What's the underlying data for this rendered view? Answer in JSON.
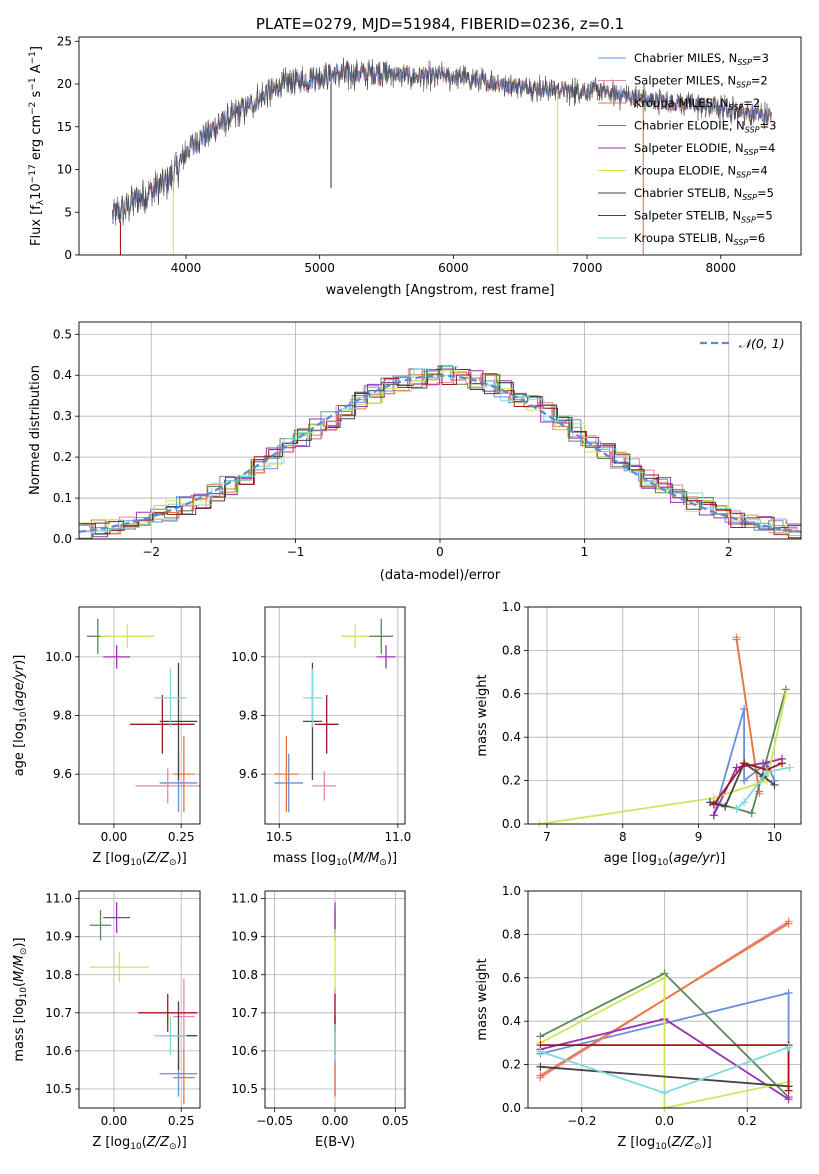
{
  "figure": {
    "title": "PLATE=0279, MJD=51984, FIBERID=0236, z=0.1",
    "colors": {
      "Chabrier MILES": "#6a8fd8",
      "Salpeter MILES": "#e78aa5",
      "Kroupa MILES": "#e8793a",
      "Chabrier ELODIE": "#5c8a5c",
      "Salpeter ELODIE": "#9b30b0",
      "Kroupa ELODIE": "#cfe65a",
      "Chabrier STELIB": "#444444",
      "Salpeter STELIB": "#a01818",
      "Kroupa STELIB": "#7fd9de"
    }
  },
  "chart_data": [
    {
      "id": "spectrum",
      "type": "line",
      "title": "PLATE=0279, MJD=51984, FIBERID=0236, z=0.1",
      "xlabel": "wavelength [Angstrom, rest frame]",
      "ylabel": "Flux [f_λ10^-17 erg cm^-2 s^-1 A^-1]",
      "xlim": [
        3200,
        8600
      ],
      "ylim": [
        0,
        25.5
      ],
      "xticks": [
        4000,
        5000,
        6000,
        7000,
        8000
      ],
      "yticks": [
        0,
        5,
        10,
        15,
        20,
        25
      ],
      "grid": false,
      "legend_placement": "top-right",
      "continuum": {
        "x": [
          3450,
          3600,
          3750,
          3900,
          4000,
          4100,
          4300,
          4500,
          4700,
          4900,
          5100,
          5300,
          5500,
          5700,
          5900,
          6100,
          6300,
          6500,
          6700,
          6900,
          7100,
          7300,
          7500,
          7700,
          7900,
          8100,
          8300,
          8380
        ],
        "y": [
          4.5,
          6.2,
          7.6,
          9.2,
          12.0,
          13.6,
          15.8,
          17.8,
          19.8,
          20.6,
          21.2,
          21.2,
          21.3,
          20.9,
          21.0,
          20.6,
          20.1,
          19.8,
          19.4,
          19.2,
          19.1,
          18.6,
          18.1,
          17.8,
          17.4,
          17.0,
          16.4,
          16.0
        ]
      },
      "series": [
        {
          "name": "Chabrier MILES",
          "nssp": "3"
        },
        {
          "name": "Salpeter MILES",
          "nssp": "2"
        },
        {
          "name": "Kroupa MILES",
          "nssp": "2"
        },
        {
          "name": "Chabrier ELODIE",
          "nssp": "3"
        },
        {
          "name": "Salpeter ELODIE",
          "nssp": "4"
        },
        {
          "name": "Kroupa ELODIE",
          "nssp": "4"
        },
        {
          "name": "Chabrier STELIB",
          "nssp": "5"
        },
        {
          "name": "Salpeter STELIB",
          "nssp": "5"
        },
        {
          "name": "Kroupa STELIB",
          "nssp": "6"
        }
      ],
      "drops": [
        {
          "x": 3510,
          "y_from": 4.0,
          "y_to": 0,
          "series": "Salpeter STELIB"
        },
        {
          "x": 3905,
          "y_from": 9.5,
          "y_to": 0,
          "series": "Kroupa ELODIE"
        },
        {
          "x": 5085,
          "y_from": 20.0,
          "y_to": 7.8,
          "series": "Chabrier STELIB"
        },
        {
          "x": 6780,
          "y_from": 19.4,
          "y_to": 0,
          "series": "Kroupa ELODIE"
        },
        {
          "x": 7420,
          "y_from": 18.4,
          "y_to": 0,
          "series": "Kroupa MILES"
        }
      ]
    },
    {
      "id": "residuals",
      "type": "histogram",
      "xlabel": "(data-model)/error",
      "ylabel": "Normed distribution",
      "xlim": [
        -2.5,
        2.5
      ],
      "ylim": [
        0,
        0.53
      ],
      "xticks": [
        -2,
        -1,
        0,
        1,
        2
      ],
      "yticks": [
        0.0,
        0.1,
        0.2,
        0.3,
        0.4,
        0.5
      ],
      "grid": true,
      "legend_placement": "top-right",
      "gaussian_legend": "𝒩(0, 1)",
      "bin_width": 0.1,
      "bins_start": -2.5,
      "series_heights": [
        [
          0.02,
          0.02,
          0.03,
          0.03,
          0.04,
          0.04,
          0.05,
          0.06,
          0.07,
          0.08,
          0.09,
          0.11,
          0.12,
          0.14,
          0.16,
          0.18,
          0.19,
          0.21,
          0.23,
          0.25,
          0.26,
          0.28,
          0.3,
          0.32,
          0.34,
          0.36,
          0.37,
          0.39,
          0.4,
          0.42,
          0.43,
          0.41,
          0.4,
          0.38,
          0.37,
          0.35,
          0.33,
          0.31,
          0.29,
          0.27,
          0.25,
          0.23,
          0.21,
          0.19,
          0.17,
          0.15,
          0.13,
          0.11,
          0.1,
          0.08
        ]
      ]
    },
    {
      "id": "age_vs_Z",
      "type": "errorbar",
      "xlabel": "Z [log10(Z/Z⊙)]",
      "ylabel": "age [log10(age/yr)]",
      "xlim": [
        -0.13,
        0.32
      ],
      "ylim": [
        9.43,
        10.17
      ],
      "xticks": [
        "0.00",
        "0.25"
      ],
      "xtick_values": [
        0.0,
        0.25
      ],
      "yticks": [
        "9.6",
        "9.8",
        "10.0"
      ],
      "ytick_values": [
        9.6,
        9.8,
        10.0
      ],
      "grid": true,
      "points": [
        {
          "series": "Chabrier MILES",
          "x": 0.24,
          "y": 9.57,
          "xerr": 0.07,
          "yerr": 0.1
        },
        {
          "series": "Salpeter MILES",
          "x": 0.2,
          "y": 9.56,
          "xerr": 0.12,
          "yerr": 0.06
        },
        {
          "series": "Kroupa MILES",
          "x": 0.26,
          "y": 9.6,
          "xerr": 0.04,
          "yerr": 0.13
        },
        {
          "series": "Chabrier ELODIE",
          "x": -0.06,
          "y": 10.07,
          "xerr": 0.04,
          "yerr": 0.06
        },
        {
          "series": "Salpeter ELODIE",
          "x": 0.01,
          "y": 10.0,
          "xerr": 0.05,
          "yerr": 0.04
        },
        {
          "series": "Kroupa ELODIE",
          "x": 0.05,
          "y": 10.07,
          "xerr": 0.1,
          "yerr": 0.04
        },
        {
          "series": "Chabrier STELIB",
          "x": 0.24,
          "y": 9.78,
          "xerr": 0.07,
          "yerr": 0.2
        },
        {
          "series": "Salpeter STELIB",
          "x": 0.18,
          "y": 9.77,
          "xerr": 0.12,
          "yerr": 0.1
        },
        {
          "series": "Kroupa STELIB",
          "x": 0.21,
          "y": 9.86,
          "xerr": 0.06,
          "yerr": 0.1
        }
      ]
    },
    {
      "id": "age_vs_mass",
      "type": "errorbar",
      "xlabel": "mass [log10(M/M⊙)]",
      "ylabel": "",
      "xlim": [
        10.44,
        11.03
      ],
      "ylim": [
        9.43,
        10.17
      ],
      "xticks": [
        "10.5",
        "11.0"
      ],
      "xtick_values": [
        10.5,
        11.0
      ],
      "yticks": [
        "9.6",
        "9.8",
        "10.0"
      ],
      "ytick_values": [
        9.6,
        9.8,
        10.0
      ],
      "grid": true,
      "points": [
        {
          "series": "Chabrier MILES",
          "x": 10.54,
          "y": 9.57,
          "xerr": 0.06,
          "yerr": 0.1
        },
        {
          "series": "Salpeter MILES",
          "x": 10.69,
          "y": 9.56,
          "xerr": 0.05,
          "yerr": 0.05
        },
        {
          "series": "Kroupa MILES",
          "x": 10.53,
          "y": 9.6,
          "xerr": 0.05,
          "yerr": 0.13
        },
        {
          "series": "Chabrier ELODIE",
          "x": 10.93,
          "y": 10.07,
          "xerr": 0.05,
          "yerr": 0.06
        },
        {
          "series": "Salpeter ELODIE",
          "x": 10.95,
          "y": 10.0,
          "xerr": 0.04,
          "yerr": 0.04
        },
        {
          "series": "Kroupa ELODIE",
          "x": 10.82,
          "y": 10.07,
          "xerr": 0.06,
          "yerr": 0.04
        },
        {
          "series": "Chabrier STELIB",
          "x": 10.64,
          "y": 9.78,
          "xerr": 0.04,
          "yerr": 0.2
        },
        {
          "series": "Salpeter STELIB",
          "x": 10.7,
          "y": 9.77,
          "xerr": 0.05,
          "yerr": 0.1
        },
        {
          "series": "Kroupa STELIB",
          "x": 10.64,
          "y": 9.86,
          "xerr": 0.04,
          "yerr": 0.1
        }
      ]
    },
    {
      "id": "weight_vs_age",
      "type": "line",
      "xlabel": "age [log10(age/yr)]",
      "ylabel": "mass weight",
      "xlim": [
        6.75,
        10.35
      ],
      "ylim": [
        0,
        1.0
      ],
      "xticks": [
        "7",
        "8",
        "9",
        "10"
      ],
      "xtick_values": [
        7,
        8,
        9,
        10
      ],
      "yticks": [
        "0.0",
        "0.2",
        "0.4",
        "0.6",
        "0.8",
        "1.0"
      ],
      "ytick_values": [
        0.0,
        0.2,
        0.4,
        0.6,
        0.8,
        1.0
      ],
      "grid": true,
      "lines": [
        {
          "series": "Chabrier MILES",
          "x": [
            9.2,
            9.6,
            9.6,
            9.9,
            10.0
          ],
          "y": [
            0.04,
            0.53,
            0.2,
            0.28,
            0.2
          ]
        },
        {
          "series": "Salpeter MILES",
          "x": [
            9.5,
            9.8
          ],
          "y": [
            0.86,
            0.14
          ]
        },
        {
          "series": "Kroupa MILES",
          "x": [
            9.5,
            9.8
          ],
          "y": [
            0.85,
            0.15
          ]
        },
        {
          "series": "Chabrier ELODIE",
          "x": [
            9.2,
            9.7,
            10.15
          ],
          "y": [
            0.1,
            0.05,
            0.62
          ]
        },
        {
          "series": "Salpeter ELODIE",
          "x": [
            9.2,
            9.5,
            9.85,
            10.1
          ],
          "y": [
            0.04,
            0.26,
            0.28,
            0.3
          ]
        },
        {
          "series": "Kroupa ELODIE",
          "x": [
            6.9,
            9.2,
            9.9,
            10.15
          ],
          "y": [
            0.0,
            0.12,
            0.2,
            0.6
          ]
        },
        {
          "series": "Chabrier STELIB",
          "x": [
            9.15,
            9.35,
            9.6,
            9.85,
            10.0
          ],
          "y": [
            0.1,
            0.08,
            0.28,
            0.22,
            0.18
          ]
        },
        {
          "series": "Salpeter STELIB",
          "x": [
            9.2,
            9.6,
            9.9,
            10.1
          ],
          "y": [
            0.09,
            0.28,
            0.25,
            0.28
          ]
        },
        {
          "series": "Kroupa STELIB",
          "x": [
            9.5,
            9.6,
            9.9,
            10.2
          ],
          "y": [
            0.07,
            0.1,
            0.24,
            0.26
          ]
        }
      ]
    },
    {
      "id": "mass_vs_Z",
      "type": "errorbar",
      "xlabel": "Z [log10(Z/Z⊙)]",
      "ylabel": "mass [log10(M/M⊙)]",
      "xlim": [
        -0.13,
        0.32
      ],
      "ylim": [
        10.45,
        11.02
      ],
      "xticks": [
        "0.00",
        "0.25"
      ],
      "xtick_values": [
        0.0,
        0.25
      ],
      "yticks": [
        "10.5",
        "10.6",
        "10.7",
        "10.8",
        "10.9",
        "11.0"
      ],
      "ytick_values": [
        10.5,
        10.6,
        10.7,
        10.8,
        10.9,
        11.0
      ],
      "grid": true,
      "points": [
        {
          "series": "Chabrier MILES",
          "x": 0.24,
          "y": 10.54,
          "xerr": 0.07,
          "yerr": 0.06
        },
        {
          "series": "Salpeter MILES",
          "x": 0.26,
          "y": 10.69,
          "xerr": 0.04,
          "yerr": 0.1
        },
        {
          "series": "Kroupa MILES",
          "x": 0.26,
          "y": 10.53,
          "xerr": 0.04,
          "yerr": 0.07
        },
        {
          "series": "Chabrier ELODIE",
          "x": -0.05,
          "y": 10.93,
          "xerr": 0.04,
          "yerr": 0.04
        },
        {
          "series": "Salpeter ELODIE",
          "x": 0.01,
          "y": 10.95,
          "xerr": 0.05,
          "yerr": 0.04
        },
        {
          "series": "Kroupa ELODIE",
          "x": 0.02,
          "y": 10.82,
          "xerr": 0.11,
          "yerr": 0.04
        },
        {
          "series": "Chabrier STELIB",
          "x": 0.24,
          "y": 10.64,
          "xerr": 0.07,
          "yerr": 0.09
        },
        {
          "series": "Salpeter STELIB",
          "x": 0.2,
          "y": 10.7,
          "xerr": 0.11,
          "yerr": 0.05
        },
        {
          "series": "Kroupa STELIB",
          "x": 0.21,
          "y": 10.64,
          "xerr": 0.06,
          "yerr": 0.05
        }
      ]
    },
    {
      "id": "mass_vs_EBV",
      "type": "errorbar",
      "xlabel": "E(B-V)",
      "ylabel": "",
      "xlim": [
        -0.058,
        0.058
      ],
      "ylim": [
        10.45,
        11.02
      ],
      "xticks": [
        "−0.05",
        "0.00",
        "0.05"
      ],
      "xtick_values": [
        -0.05,
        0.0,
        0.05
      ],
      "yticks": [
        "10.5",
        "10.6",
        "10.7",
        "10.8",
        "10.9",
        "11.0"
      ],
      "ytick_values": [
        10.5,
        10.6,
        10.7,
        10.8,
        10.9,
        11.0
      ],
      "grid": true,
      "points": [
        {
          "series": "Chabrier MILES",
          "x": 0.0,
          "y": 10.54,
          "xerr": 0.0,
          "yerr": 0.06
        },
        {
          "series": "Salpeter MILES",
          "x": 0.0,
          "y": 10.69,
          "xerr": 0.0,
          "yerr": 0.08
        },
        {
          "series": "Kroupa MILES",
          "x": 0.0,
          "y": 10.53,
          "xerr": 0.0,
          "yerr": 0.05
        },
        {
          "series": "Chabrier ELODIE",
          "x": 0.0,
          "y": 10.93,
          "xerr": 0.0,
          "yerr": 0.04
        },
        {
          "series": "Salpeter ELODIE",
          "x": 0.0,
          "y": 10.95,
          "xerr": 0.0,
          "yerr": 0.04
        },
        {
          "series": "Kroupa ELODIE",
          "x": 0.0,
          "y": 10.84,
          "xerr": 0.0,
          "yerr": 0.08
        },
        {
          "series": "Chabrier STELIB",
          "x": 0.0,
          "y": 10.64,
          "xerr": 0.0,
          "yerr": 0.05
        },
        {
          "series": "Salpeter STELIB",
          "x": 0.0,
          "y": 10.7,
          "xerr": 0.0,
          "yerr": 0.05
        },
        {
          "series": "Kroupa STELIB",
          "x": 0.0,
          "y": 10.62,
          "xerr": 0.0,
          "yerr": 0.05
        }
      ]
    },
    {
      "id": "weight_vs_Z",
      "type": "line",
      "xlabel": "Z [log10(Z/Z⊙)]",
      "ylabel": "mass weight",
      "xlim": [
        -0.33,
        0.33
      ],
      "ylim": [
        0,
        1.0
      ],
      "xticks": [
        "−0.2",
        "0.0",
        "0.2"
      ],
      "xtick_values": [
        -0.2,
        0.0,
        0.2
      ],
      "yticks": [
        "0.0",
        "0.2",
        "0.4",
        "0.6",
        "0.8",
        "1.0"
      ],
      "ytick_values": [
        0.0,
        0.2,
        0.4,
        0.6,
        0.8,
        1.0
      ],
      "grid": true,
      "lines": [
        {
          "series": "Chabrier MILES",
          "x": [
            -0.3,
            0.3,
            0.3
          ],
          "y": [
            0.25,
            0.53,
            0.1
          ]
        },
        {
          "series": "Salpeter MILES",
          "x": [
            -0.3,
            0.3
          ],
          "y": [
            0.14,
            0.86
          ]
        },
        {
          "series": "Kroupa MILES",
          "x": [
            -0.3,
            0.3
          ],
          "y": [
            0.15,
            0.85
          ]
        },
        {
          "series": "Chabrier ELODIE",
          "x": [
            -0.3,
            0.0,
            0.3
          ],
          "y": [
            0.33,
            0.62,
            0.05
          ]
        },
        {
          "series": "Salpeter ELODIE",
          "x": [
            -0.3,
            0.0,
            0.3
          ],
          "y": [
            0.27,
            0.41,
            0.04
          ]
        },
        {
          "series": "Kroupa ELODIE",
          "x": [
            -0.3,
            0.0,
            0.0,
            0.3
          ],
          "y": [
            0.3,
            0.6,
            0.0,
            0.12
          ]
        },
        {
          "series": "Chabrier STELIB",
          "x": [
            -0.3,
            0.3
          ],
          "y": [
            0.19,
            0.1
          ]
        },
        {
          "series": "Salpeter STELIB",
          "x": [
            -0.3,
            0.3,
            0.3
          ],
          "y": [
            0.29,
            0.29,
            0.08
          ]
        },
        {
          "series": "Kroupa STELIB",
          "x": [
            -0.3,
            0.0,
            0.0,
            0.3
          ],
          "y": [
            0.26,
            0.07,
            0.07,
            0.28
          ]
        }
      ]
    }
  ]
}
